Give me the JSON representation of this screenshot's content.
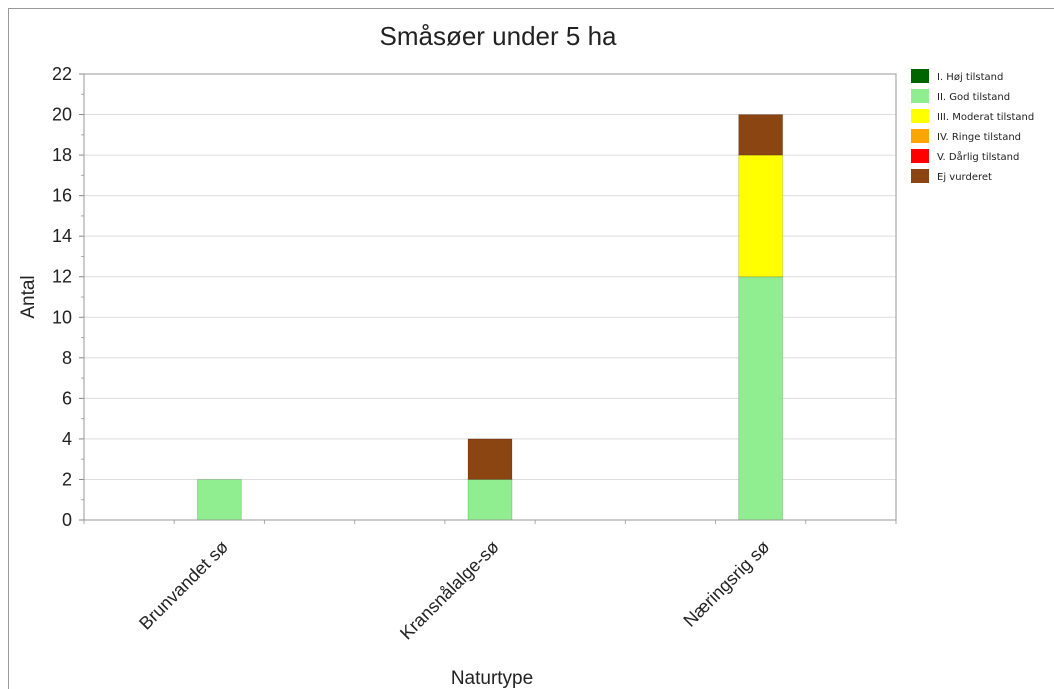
{
  "chart_data": {
    "type": "bar",
    "stacked": true,
    "title": "Småsøer under 5 ha",
    "xlabel": "Naturtype",
    "ylabel": "Antal",
    "ylim": [
      0,
      22
    ],
    "ytick_step": 2,
    "grid": true,
    "legend_position": "right",
    "categories": [
      "Brunvandet sø",
      "Kransnålalge-sø",
      "Næringsrig sø"
    ],
    "series": [
      {
        "name": "I. Høj tilstand",
        "color": "#006400",
        "values": [
          0,
          0,
          0
        ]
      },
      {
        "name": "II. God tilstand",
        "color": "#90ee90",
        "values": [
          2,
          2,
          12
        ]
      },
      {
        "name": "III. Moderat tilstand",
        "color": "#ffff00",
        "values": [
          0,
          0,
          6
        ]
      },
      {
        "name": "IV. Ringe tilstand",
        "color": "#ffa500",
        "values": [
          0,
          0,
          0
        ]
      },
      {
        "name": "V. Dårlig tilstand",
        "color": "#ff0000",
        "values": [
          0,
          0,
          0
        ]
      },
      {
        "name": "Ej vurderet",
        "color": "#8b4513",
        "values": [
          0,
          2,
          2
        ]
      }
    ]
  }
}
